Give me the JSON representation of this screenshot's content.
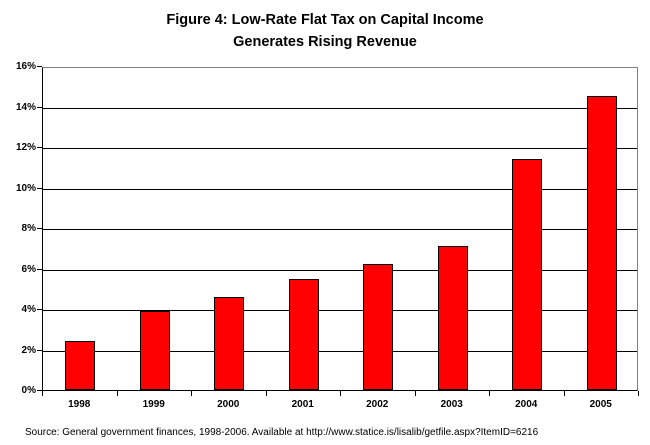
{
  "chart_data": {
    "type": "bar",
    "title": "Figure 4: Low-Rate Flat Tax on Capital Income Generates Rising Revenue",
    "title_line1": "Figure 4: Low-Rate Flat Tax on Capital Income",
    "title_line2": "Generates Rising Revenue",
    "categories": [
      "1998",
      "1999",
      "2000",
      "2001",
      "2002",
      "2003",
      "2004",
      "2005"
    ],
    "values": [
      2.4,
      3.9,
      4.6,
      5.5,
      6.2,
      7.1,
      11.4,
      14.5
    ],
    "xlabel": "",
    "ylabel": "",
    "ylim": [
      0,
      16
    ],
    "ytick_step": 2,
    "ytick_labels": [
      "0%",
      "2%",
      "4%",
      "6%",
      "8%",
      "10%",
      "12%",
      "14%",
      "16%"
    ],
    "grid": true,
    "legend": "none",
    "colors": {
      "bar_fill": "#FF0000",
      "bar_border": "#000000",
      "gridline": "#000000",
      "axis": "#000000",
      "plot_border": "#808080",
      "text": "#000000",
      "background": "#FFFFFF"
    }
  },
  "source_note": "Source: General government finances, 1998-2006. Available at http://www.statice.is/lisalib/getfile.aspx?ItemID=6216"
}
